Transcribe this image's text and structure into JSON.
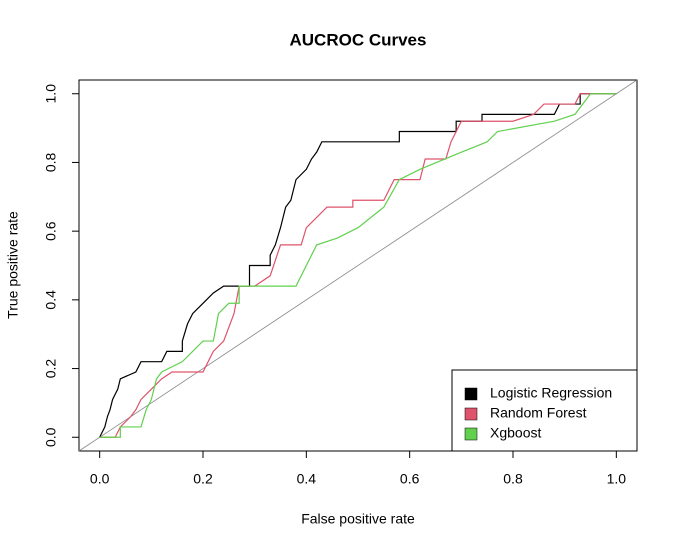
{
  "chart_data": {
    "type": "line",
    "title": "AUCROC Curves",
    "x_label": "False positive rate",
    "y_label": "True positive rate",
    "xlim": [
      -0.04,
      1.04
    ],
    "ylim": [
      -0.04,
      1.04
    ],
    "xticks": [
      {
        "value": 0,
        "label": "0.0"
      },
      0.2,
      0.4,
      0.6,
      0.8,
      {
        "value": 1,
        "label": "1.0"
      }
    ],
    "yticks": [
      {
        "value": 0,
        "label": "0.0"
      },
      0.2,
      0.4,
      0.6,
      0.8,
      {
        "value": 1,
        "label": "1.0"
      }
    ],
    "legend": "bottomright",
    "series": [
      {
        "name": "Logistic Regression",
        "color": "#000000",
        "x": [
          0,
          0.01,
          0.015,
          0.02,
          0.025,
          0.035,
          0.04,
          0.07,
          0.08,
          0.12,
          0.13,
          0.16,
          0.16,
          0.17,
          0.18,
          0.2,
          0.22,
          0.24,
          0.29,
          0.29,
          0.33,
          0.33,
          0.34,
          0.35,
          0.355,
          0.36,
          0.37,
          0.38,
          0.4,
          0.41,
          0.42,
          0.43,
          0.58,
          0.58,
          0.69,
          0.69,
          0.74,
          0.74,
          0.88,
          0.89,
          0.93,
          0.93,
          1
        ],
        "values": [
          0,
          0.03,
          0.06,
          0.08,
          0.11,
          0.14,
          0.17,
          0.19,
          0.22,
          0.22,
          0.25,
          0.25,
          0.28,
          0.33,
          0.36,
          0.39,
          0.42,
          0.44,
          0.44,
          0.5,
          0.5,
          0.53,
          0.56,
          0.61,
          0.64,
          0.67,
          0.69,
          0.75,
          0.78,
          0.81,
          0.83,
          0.86,
          0.86,
          0.89,
          0.89,
          0.92,
          0.92,
          0.94,
          0.94,
          0.97,
          0.97,
          1,
          1
        ]
      },
      {
        "name": "Random Forest",
        "color": "#DF536B",
        "x": [
          0,
          0.03,
          0.04,
          0.06,
          0.07,
          0.08,
          0.1,
          0.12,
          0.14,
          0.2,
          0.21,
          0.22,
          0.24,
          0.26,
          0.27,
          0.3,
          0.33,
          0.35,
          0.39,
          0.4,
          0.42,
          0.44,
          0.49,
          0.49,
          0.55,
          0.57,
          0.62,
          0.63,
          0.67,
          0.68,
          0.7,
          0.8,
          0.84,
          0.86,
          0.92,
          0.93,
          1
        ],
        "values": [
          0,
          0,
          0.03,
          0.06,
          0.08,
          0.11,
          0.14,
          0.17,
          0.19,
          0.19,
          0.22,
          0.25,
          0.28,
          0.36,
          0.44,
          0.44,
          0.47,
          0.56,
          0.56,
          0.61,
          0.64,
          0.67,
          0.67,
          0.69,
          0.69,
          0.75,
          0.75,
          0.81,
          0.81,
          0.86,
          0.92,
          0.92,
          0.94,
          0.97,
          0.97,
          1,
          1
        ]
      },
      {
        "name": "Xgboost",
        "color": "#61D04F",
        "x": [
          0,
          0.04,
          0.04,
          0.08,
          0.09,
          0.1,
          0.11,
          0.12,
          0.16,
          0.2,
          0.22,
          0.23,
          0.25,
          0.27,
          0.27,
          0.38,
          0.4,
          0.42,
          0.46,
          0.5,
          0.55,
          0.58,
          0.62,
          0.7,
          0.75,
          0.77,
          0.88,
          0.92,
          0.95,
          1
        ],
        "values": [
          0,
          0,
          0.03,
          0.03,
          0.08,
          0.11,
          0.17,
          0.19,
          0.22,
          0.28,
          0.28,
          0.36,
          0.39,
          0.39,
          0.44,
          0.44,
          0.5,
          0.56,
          0.58,
          0.61,
          0.67,
          0.75,
          0.78,
          0.83,
          0.86,
          0.89,
          0.92,
          0.94,
          1,
          1
        ]
      }
    ]
  }
}
